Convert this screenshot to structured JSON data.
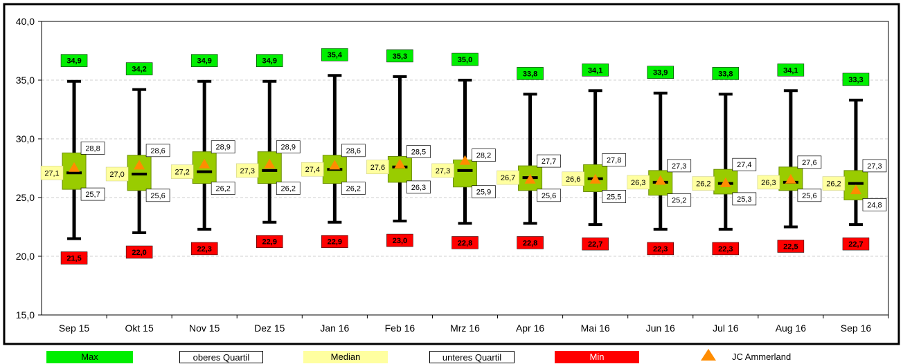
{
  "chart_data": {
    "type": "box",
    "categories": [
      "Sep 15",
      "Okt 15",
      "Nov 15",
      "Dez 15",
      "Jan 16",
      "Feb 16",
      "Mrz 16",
      "Apr 16",
      "Mai 16",
      "Jun 16",
      "Jul 16",
      "Aug 16",
      "Sep 16"
    ],
    "ylim": [
      15,
      40
    ],
    "yticks": [
      "15,0",
      "20,0",
      "25,0",
      "30,0",
      "35,0",
      "40,0"
    ],
    "grid": true,
    "series": [
      {
        "name": "Max",
        "values": [
          34.9,
          34.2,
          34.9,
          34.9,
          35.4,
          35.3,
          35.0,
          33.8,
          34.1,
          33.9,
          33.8,
          34.1,
          33.3
        ],
        "labels": [
          "34,9",
          "34,2",
          "34,9",
          "34,9",
          "35,4",
          "35,3",
          "35,0",
          "33,8",
          "34,1",
          "33,9",
          "33,8",
          "34,1",
          "33,3"
        ]
      },
      {
        "name": "oberes Quartil",
        "values": [
          28.8,
          28.6,
          28.9,
          28.9,
          28.6,
          28.5,
          28.2,
          27.7,
          27.8,
          27.3,
          27.4,
          27.6,
          27.3
        ],
        "labels": [
          "28,8",
          "28,6",
          "28,9",
          "28,9",
          "28,6",
          "28,5",
          "28,2",
          "27,7",
          "27,8",
          "27,3",
          "27,4",
          "27,6",
          "27,3"
        ]
      },
      {
        "name": "Median",
        "values": [
          27.1,
          27.0,
          27.2,
          27.3,
          27.4,
          27.6,
          27.3,
          26.7,
          26.6,
          26.3,
          26.2,
          26.3,
          26.2
        ],
        "labels": [
          "27,1",
          "27,0",
          "27,2",
          "27,3",
          "27,4",
          "27,6",
          "27,3",
          "26,7",
          "26,6",
          "26,3",
          "26,2",
          "26,3",
          "26,2"
        ]
      },
      {
        "name": "unteres Quartil",
        "values": [
          25.7,
          25.6,
          26.2,
          26.2,
          26.2,
          26.3,
          25.9,
          25.6,
          25.5,
          25.2,
          25.3,
          25.6,
          24.8
        ],
        "labels": [
          "25,7",
          "25,6",
          "26,2",
          "26,2",
          "26,2",
          "26,3",
          "25,9",
          "25,6",
          "25,5",
          "25,2",
          "25,3",
          "25,6",
          "24,8"
        ]
      },
      {
        "name": "Min",
        "values": [
          21.5,
          22.0,
          22.3,
          22.9,
          22.9,
          23.0,
          22.8,
          22.8,
          22.7,
          22.3,
          22.3,
          22.5,
          22.7
        ],
        "labels": [
          "21,5",
          "22,0",
          "22,3",
          "22,9",
          "22,9",
          "23,0",
          "22,8",
          "22,8",
          "22,7",
          "22,3",
          "22,3",
          "22,5",
          "22,7"
        ]
      },
      {
        "name": "JC Ammerland",
        "values": [
          27.6,
          27.8,
          27.9,
          27.9,
          27.8,
          27.9,
          28.2,
          26.6,
          26.6,
          26.5,
          26.3,
          26.6,
          25.7
        ]
      }
    ]
  },
  "legend": {
    "max": "Max",
    "upper": "oberes Quartil",
    "median": "Median",
    "lower": "unteres Quartil",
    "min": "Min",
    "jc": "JC Ammerland"
  },
  "colors": {
    "max": "#00ee00",
    "min": "#ff0000",
    "median": "#ffffa0",
    "box": "#99cc00",
    "triangle": "#ff8c00"
  }
}
